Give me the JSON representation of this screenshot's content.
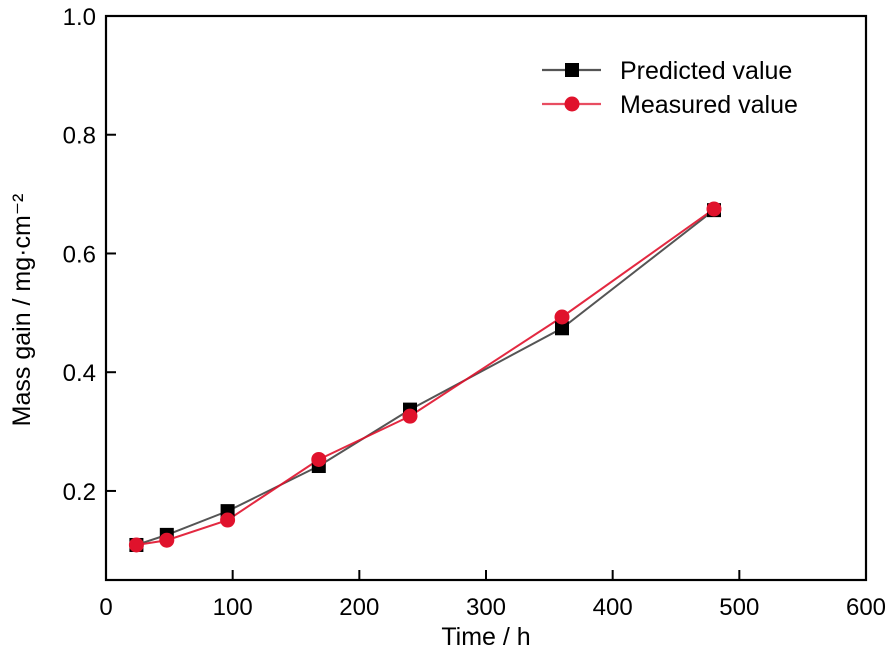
{
  "chart_data": {
    "type": "line",
    "title": "",
    "xlabel": "Time / h",
    "ylabel": "Mass gain / mg·cm⁻²",
    "xlim": [
      0,
      600
    ],
    "ylim": [
      0.05,
      1.0
    ],
    "xticks": [
      0,
      100,
      200,
      300,
      400,
      500,
      600
    ],
    "xtick_labels": [
      "0",
      "100",
      "200",
      "300",
      "400",
      "500",
      "600"
    ],
    "yticks": [
      0.2,
      0.4,
      0.6,
      0.8,
      1.0
    ],
    "ytick_labels": [
      "0.2",
      "0.4",
      "0.6",
      "0.8",
      "1.0"
    ],
    "grid": false,
    "legend_position": "top-right",
    "x": [
      24,
      48,
      96,
      168,
      240,
      360,
      480
    ],
    "series": [
      {
        "name": "Predicted value",
        "marker": "square",
        "color": "#000000",
        "line_color": "#555555",
        "values": [
          0.109,
          0.126,
          0.166,
          0.242,
          0.337,
          0.474,
          0.673
        ]
      },
      {
        "name": "Measured value",
        "marker": "circle",
        "color": "#e0122c",
        "line_color": "#e0122c",
        "values": [
          0.109,
          0.117,
          0.151,
          0.253,
          0.326,
          0.493,
          0.675
        ]
      }
    ]
  }
}
